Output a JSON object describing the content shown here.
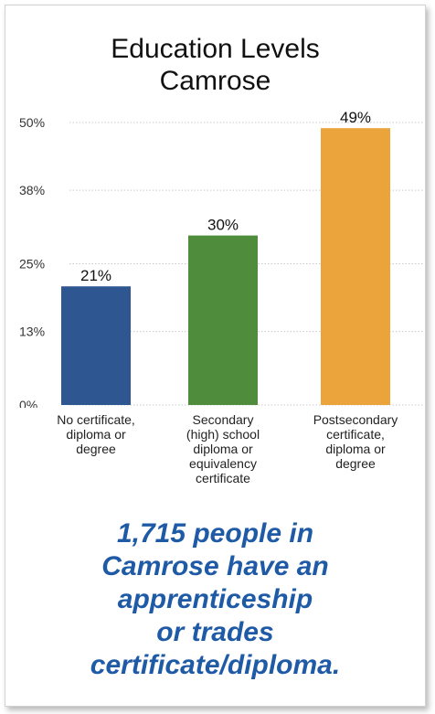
{
  "chart_data": {
    "type": "bar",
    "title_lines": [
      "Education Levels",
      "Camrose"
    ],
    "categories": [
      [
        "No certificate,",
        "diploma or",
        "degree"
      ],
      [
        "Secondary",
        "(high) school",
        "diploma or",
        "equivalency",
        "certificate"
      ],
      [
        "Postsecondary",
        "certificate,",
        "diploma or",
        "degree"
      ]
    ],
    "values": [
      21,
      30,
      49
    ],
    "data_labels": [
      "21%",
      "30%",
      "49%"
    ],
    "colors": [
      "#2e5690",
      "#4f8c3b",
      "#eba33b"
    ],
    "y_ticks": [
      0,
      13,
      25,
      38,
      50
    ],
    "y_tick_labels": [
      "0%",
      "13%",
      "25%",
      "38%",
      "50%"
    ],
    "ylim": [
      0,
      50
    ],
    "grid": "dotted horizontal"
  },
  "footnote_lines": [
    "1,715 people in",
    "Camrose have an",
    "apprenticeship",
    "or trades",
    "certificate/diploma."
  ]
}
